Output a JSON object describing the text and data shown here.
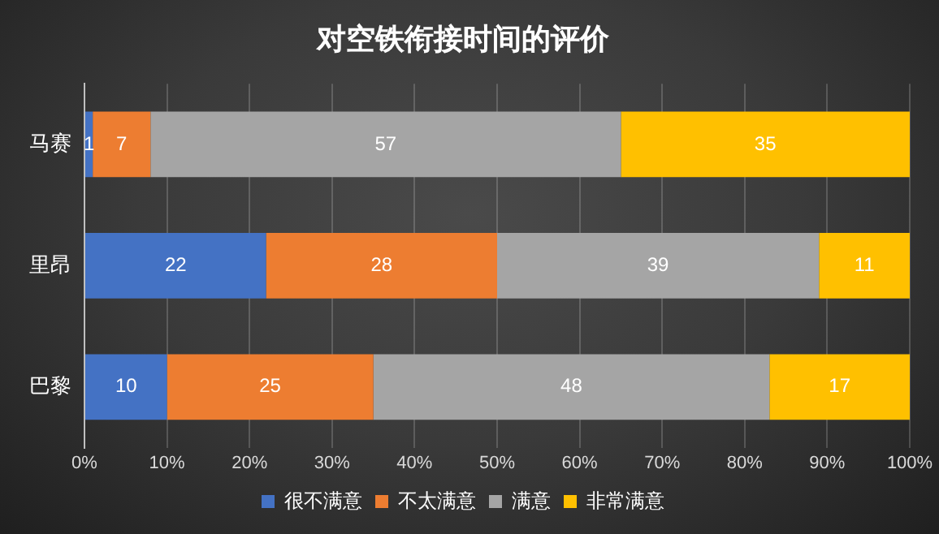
{
  "chart_data": {
    "type": "bar",
    "orientation": "horizontal",
    "stacked": true,
    "title": "对空铁衔接时间的评价",
    "categories": [
      "马赛",
      "里昂",
      "巴黎"
    ],
    "series": [
      {
        "name": "很不满意",
        "color": "#4472c4",
        "values": [
          1,
          22,
          10
        ]
      },
      {
        "name": "不太满意",
        "color": "#ed7d31",
        "values": [
          7,
          28,
          25
        ]
      },
      {
        "name": "满意",
        "color": "#a5a5a5",
        "values": [
          57,
          39,
          48
        ]
      },
      {
        "name": "非常满意",
        "color": "#ffc000",
        "values": [
          35,
          11,
          17
        ]
      }
    ],
    "xlim": [
      0,
      100
    ],
    "xticks": [
      {
        "value": 0,
        "label": "0%"
      },
      {
        "value": 10,
        "label": "10%"
      },
      {
        "value": 20,
        "label": "20%"
      },
      {
        "value": 30,
        "label": "30%"
      },
      {
        "value": 40,
        "label": "40%"
      },
      {
        "value": 50,
        "label": "50%"
      },
      {
        "value": 60,
        "label": "60%"
      },
      {
        "value": 70,
        "label": "70%"
      },
      {
        "value": 80,
        "label": "80%"
      },
      {
        "value": 90,
        "label": "90%"
      },
      {
        "value": 100,
        "label": "100%"
      }
    ],
    "grid": "x",
    "legend": "bottom",
    "data_labels": true
  }
}
